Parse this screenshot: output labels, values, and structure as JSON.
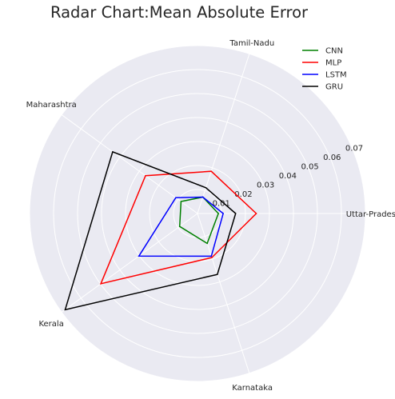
{
  "chart_data": {
    "type": "radar",
    "title": "Radar Chart:Mean Absolute Error",
    "categories": [
      "Uttar-Pradesh",
      "Tamil-Nadu",
      "Maharashtra",
      "Kerala",
      "Karnataka"
    ],
    "rlim": [
      0,
      0.07
    ],
    "r_ticks": [
      0.01,
      0.02,
      0.03,
      0.04,
      0.05,
      0.06,
      0.07
    ],
    "r_tick_labels": [
      "0.01",
      "0.02",
      "0.03",
      "0.04",
      "0.05",
      "0.06",
      "0.07"
    ],
    "grid": true,
    "legend_position": "top-right",
    "series": [
      {
        "name": "CNN",
        "color": "#008000",
        "values": [
          0.0087,
          0.0072,
          0.0085,
          0.0092,
          0.0131
        ]
      },
      {
        "name": "MLP",
        "color": "#ff0000",
        "values": [
          0.0245,
          0.0185,
          0.0268,
          0.0498,
          0.0193
        ]
      },
      {
        "name": "LSTM",
        "color": "#0000ff",
        "values": [
          0.0107,
          0.0072,
          0.0112,
          0.0302,
          0.0187
        ]
      },
      {
        "name": "GRU",
        "color": "#000000",
        "values": [
          0.0159,
          0.0113,
          0.0437,
          0.0682,
          0.0267
        ]
      }
    ]
  }
}
